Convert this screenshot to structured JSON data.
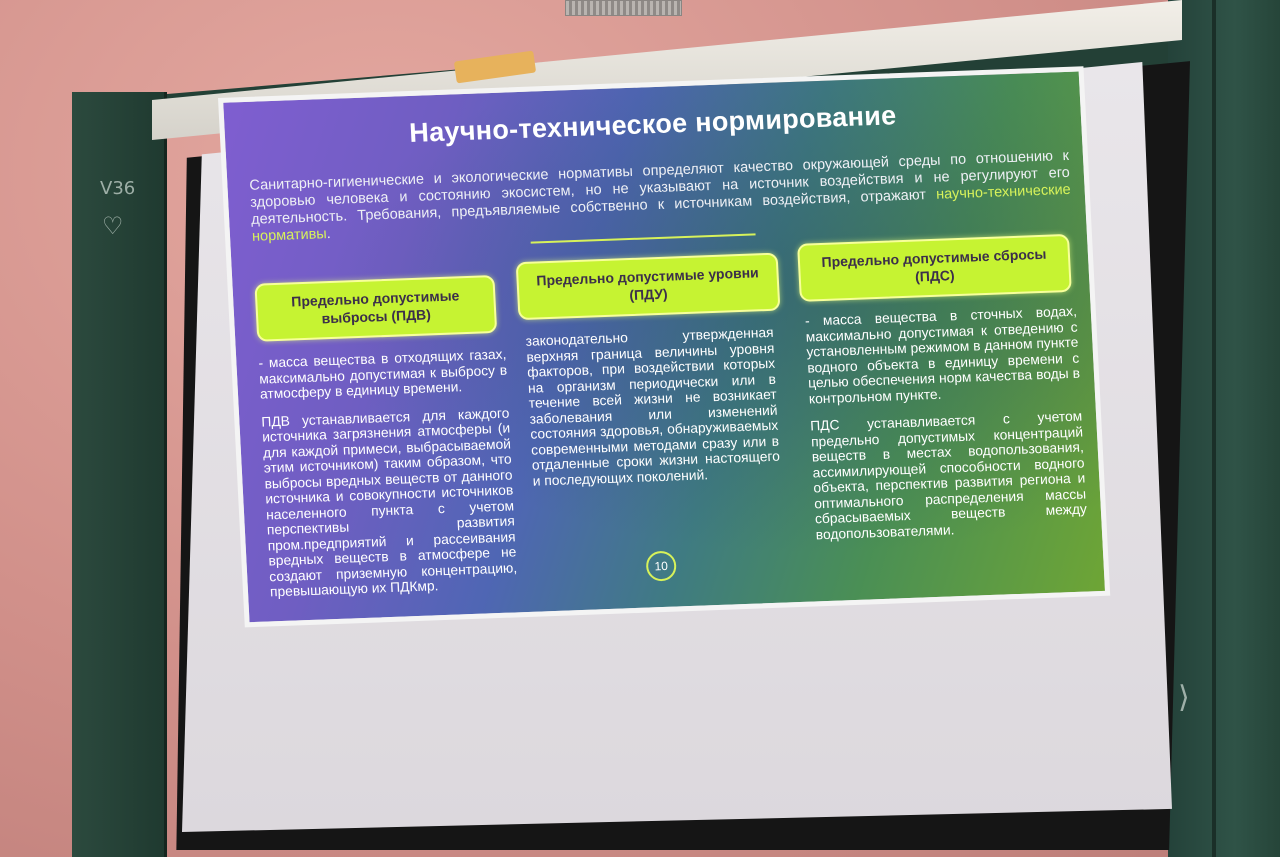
{
  "slide": {
    "title": "Научно-техническое нормирование",
    "intro_text": "Санитарно-гигиенические и экологические нормативы определяют качество окружающей среды по отношению к здоровью человека и состоянию экосистем, но не указывают на источник воздействия и не регулируют его деятельность. Требования, предъявляемые собственно к источникам воздействия, отражают ",
    "intro_highlight": "научно-технические нормативы",
    "intro_end": ".",
    "columns": [
      {
        "heading": "Предельно допустимые выбросы (ПДВ)",
        "paragraph1": "- масса вещества в отходящих газах, максимально допустимая к выбросу в атмосферу в единицу времени.",
        "paragraph2": "ПДВ устанавливается для каждого источника загрязнения атмосферы (и для каждой примеси, выбрасываемой этим источником) таким образом, что выбросы вредных веществ от данного источника и совокупности источников населенного пункта с учетом перспективы развития пром.предприятий и рассеивания вредных веществ в атмосфере не создают приземную концентрацию, превышающую их ПДКмр."
      },
      {
        "heading": "Предельно допустимые уровни (ПДУ)",
        "paragraph1": "законодательно утвержденная верхняя граница величины уровня факторов, при воздействии которых на организм периодически или в течение всей жизни не возникает заболевания или изменений состояния здоровья, обнаруживаемых современными методами сразу или в отдаленные сроки жизни настоящего и последующих поколений."
      },
      {
        "heading": "Предельно допустимые сбросы (ПДС)",
        "paragraph1": "- масса вещества в сточных водах, максимально допустимая к отведению с установленным режимом в данном пункте водного объекта в единицу времени с целью обеспечения норм качества воды в контрольном пункте.",
        "paragraph2": "ПДС устанавливается с учетом предельно допустимых концентраций веществ в местах водопользования, ассимилирующей способности водного объекта, перспектив развития региона и оптимального распределения массы сбрасываемых веществ между водопользователями."
      }
    ],
    "page_number": "10"
  },
  "colors": {
    "accent": "#c6f332",
    "highlight_text": "#d7f25a",
    "slide_purple": "#7f5ed0",
    "slide_green": "#6ea535",
    "wall": "#d99a94",
    "board": "#2c4a3e"
  }
}
